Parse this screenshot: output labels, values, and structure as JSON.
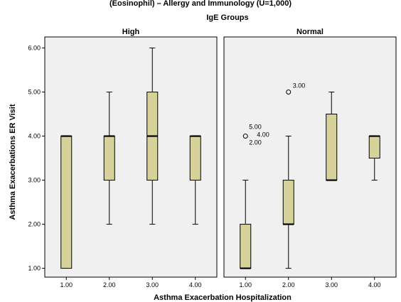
{
  "chart_data": {
    "type": "boxplot",
    "top_caption": "(Eosinophil) – Allergy and Immunology (U=1,000)",
    "group_title": "IgE Groups",
    "xlabel": "Asthma Exacerbation Hospitalization",
    "ylabel": "Asthma Exacerbations ER Visit",
    "ylim": [
      0.8,
      6.25
    ],
    "yticks": [
      "1.00",
      "2.00",
      "3.00",
      "4.00",
      "5.00",
      "6.00"
    ],
    "categories": [
      "1.00",
      "2.00",
      "3.00",
      "4.00"
    ],
    "box_color": "#d6d29a",
    "panel_background": "#f0f0f0",
    "grid": false,
    "panels": [
      {
        "name": "High",
        "boxes": [
          {
            "category": "1.00",
            "min": 1,
            "q1": 1,
            "median": 4,
            "q3": 4,
            "max": 4,
            "outliers": []
          },
          {
            "category": "2.00",
            "min": 2,
            "q1": 3,
            "median": 4,
            "q3": 4,
            "max": 5,
            "outliers": []
          },
          {
            "category": "3.00",
            "min": 2,
            "q1": 3,
            "median": 4,
            "q3": 5,
            "max": 6,
            "outliers": []
          },
          {
            "category": "4.00",
            "min": 2,
            "q1": 3,
            "median": 4,
            "q3": 4,
            "max": 4,
            "outliers": []
          }
        ]
      },
      {
        "name": "Normal",
        "boxes": [
          {
            "category": "1.00",
            "min": 1,
            "q1": 1,
            "median": 1,
            "q3": 2,
            "max": 3,
            "outliers": [
              {
                "value": 4,
                "labels": [
                  "5.00",
                  "4.00",
                  "2.00"
                ]
              }
            ]
          },
          {
            "category": "2.00",
            "min": 1,
            "q1": 2,
            "median": 2,
            "q3": 3,
            "max": 4,
            "outliers": [
              {
                "value": 5,
                "labels": [
                  "3.00"
                ]
              }
            ]
          },
          {
            "category": "3.00",
            "min": 3,
            "q1": 3,
            "median": 3,
            "q3": 4.5,
            "max": 5,
            "outliers": []
          },
          {
            "category": "4.00",
            "min": 3,
            "q1": 3.5,
            "median": 4,
            "q3": 4,
            "max": 4,
            "outliers": []
          }
        ]
      }
    ]
  }
}
